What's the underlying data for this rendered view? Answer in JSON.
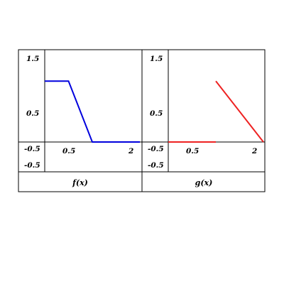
{
  "chart_data": [
    {
      "type": "line",
      "caption": "f(x)",
      "color": "#0000dd",
      "segments": [
        [
          [
            0,
            1.1
          ],
          [
            0.5,
            1.1
          ],
          [
            1,
            0
          ],
          [
            2,
            0
          ]
        ]
      ],
      "xlim": [
        0,
        2
      ],
      "ylim": [
        -0.5,
        1.5
      ],
      "x_tick_labels": [
        "0.5",
        "2"
      ],
      "y_tick_labels": [
        "1.5",
        "0.5",
        "-0.5",
        "-0.5"
      ]
    },
    {
      "type": "line",
      "caption": "g(x)",
      "color": "#ee2222",
      "segments": [
        [
          [
            0,
            0
          ],
          [
            1,
            0
          ]
        ],
        [
          [
            1,
            1.1
          ],
          [
            2,
            0
          ]
        ]
      ],
      "xlim": [
        0,
        2
      ],
      "ylim": [
        -0.5,
        1.5
      ],
      "x_tick_labels": [
        "0.5",
        "2"
      ],
      "y_tick_labels": [
        "1.5",
        "0.5",
        "-0.5",
        "-0.5"
      ]
    }
  ]
}
